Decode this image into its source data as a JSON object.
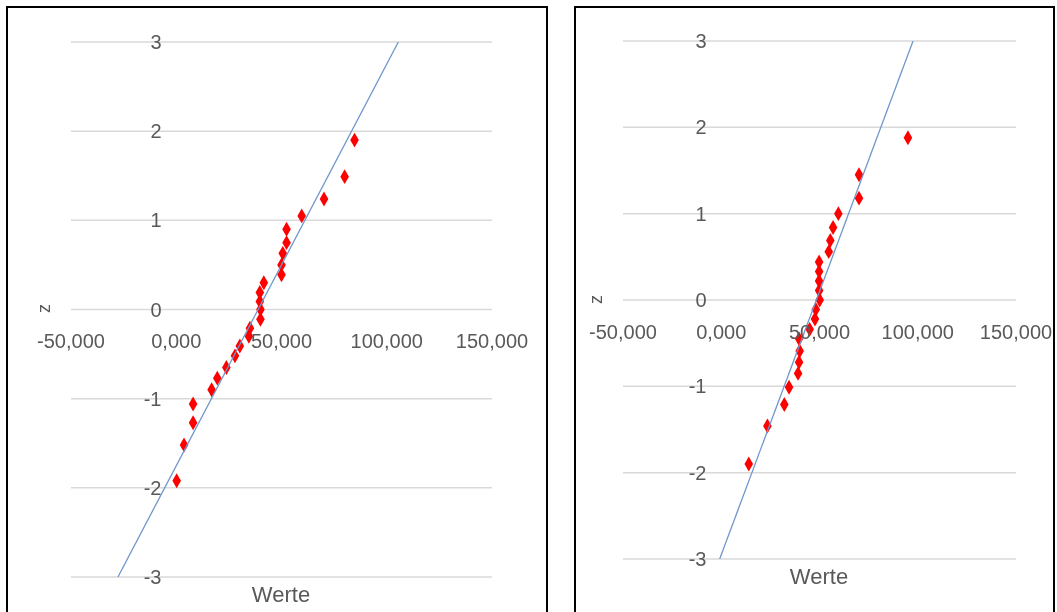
{
  "chart_data": [
    {
      "type": "scatter",
      "xlabel": "Werte",
      "ylabel": "z",
      "xlim": [
        -50,
        150
      ],
      "xticks": [
        {
          "value": -50,
          "label": "-50,000"
        },
        {
          "value": 0,
          "label": "0,000"
        },
        {
          "value": 50,
          "label": "50,000"
        },
        {
          "value": 100,
          "label": "100,000"
        },
        {
          "value": 150,
          "label": "150,000"
        }
      ],
      "ylim": [
        -3,
        3
      ],
      "yticks": [
        -3,
        -2,
        -1,
        0,
        1,
        2,
        3
      ],
      "grid": "y",
      "series": [
        {
          "marker": "diamond",
          "color": "#ff0000",
          "x": [
            0.2,
            3.7,
            8.0,
            8.0,
            16.8,
            19.5,
            23.8,
            27.9,
            30.2,
            34.5,
            35.0,
            40.0,
            40.0,
            39.7,
            39.7,
            41.6,
            50.0,
            50.0,
            50.6,
            52.4,
            52.4,
            59.6,
            70.2,
            80.0,
            84.7
          ],
          "values": [
            -1.92,
            -1.52,
            -1.27,
            -1.06,
            -0.9,
            -0.77,
            -0.65,
            -0.52,
            -0.41,
            -0.3,
            -0.21,
            -0.11,
            0.0,
            0.09,
            0.19,
            0.3,
            0.39,
            0.5,
            0.63,
            0.75,
            0.9,
            1.05,
            1.24,
            1.49,
            1.9
          ]
        },
        {
          "type": "line",
          "marker": "none",
          "color": "#6f97cc",
          "x": [
            -27.7,
            105.5
          ],
          "values": [
            -3,
            3
          ]
        }
      ]
    },
    {
      "type": "scatter",
      "xlabel": "Werte",
      "ylabel": "z",
      "xlim": [
        -50,
        150
      ],
      "xticks": [
        {
          "value": -50,
          "label": "-50,000"
        },
        {
          "value": 0,
          "label": "0,000"
        },
        {
          "value": 50,
          "label": "50,000"
        },
        {
          "value": 100,
          "label": "100,000"
        },
        {
          "value": 150,
          "label": "150,000"
        }
      ],
      "ylim": [
        -3,
        3
      ],
      "yticks": [
        -3,
        -2,
        -1,
        0,
        1,
        2,
        3
      ],
      "grid": "y",
      "series": [
        {
          "marker": "diamond",
          "color": "#ff0000",
          "x": [
            14.0,
            23.5,
            32.1,
            34.5,
            39.1,
            39.6,
            39.9,
            39.6,
            45.0,
            47.7,
            48.1,
            50.1,
            49.8,
            49.8,
            49.8,
            49.8,
            54.7,
            55.5,
            56.9,
            59.6,
            70.1,
            70.1,
            95.0
          ],
          "values": [
            -1.9,
            -1.46,
            -1.21,
            -1.01,
            -0.85,
            -0.72,
            -0.59,
            -0.45,
            -0.34,
            -0.22,
            -0.11,
            0.0,
            0.11,
            0.22,
            0.33,
            0.44,
            0.56,
            0.69,
            0.84,
            1.0,
            1.18,
            1.45,
            1.88
          ]
        },
        {
          "type": "line",
          "marker": "none",
          "color": "#6f97cc",
          "x": [
            -0.8,
            97.6
          ],
          "values": [
            -3,
            3
          ]
        }
      ]
    }
  ]
}
